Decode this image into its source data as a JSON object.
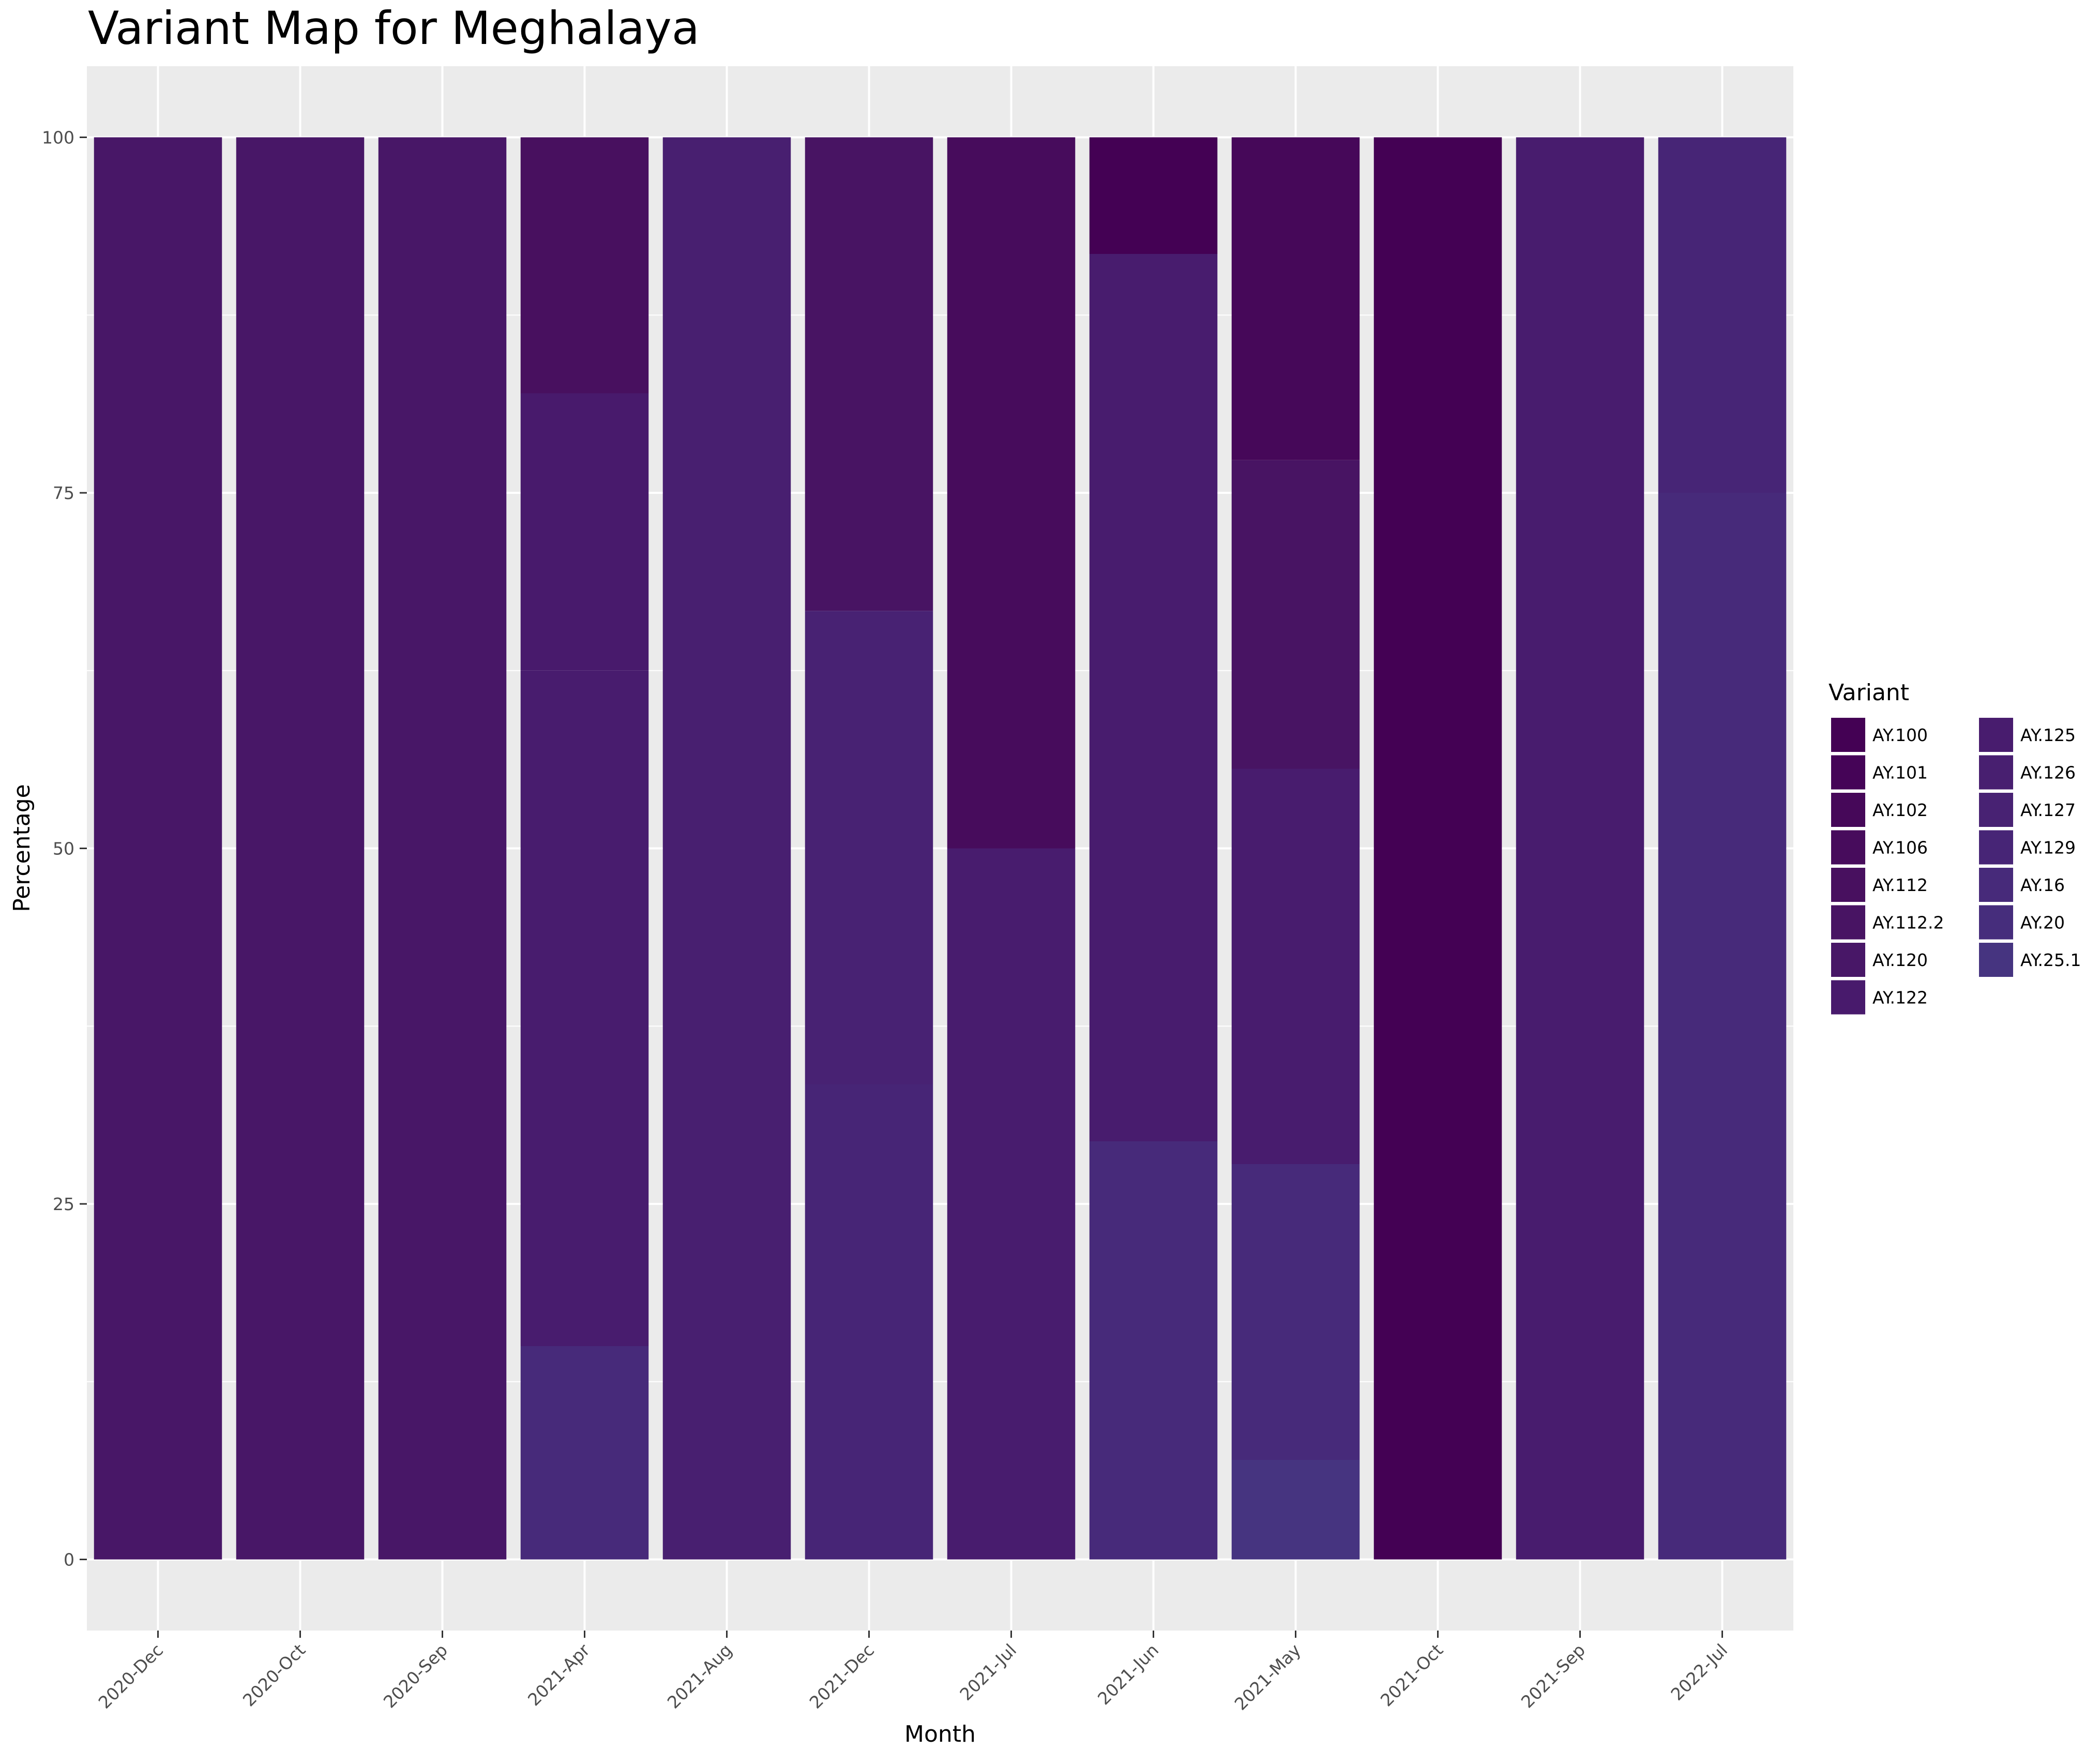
{
  "chart_data": {
    "type": "bar",
    "stacked": true,
    "title": "Variant Map for Meghalaya",
    "xlabel": "Month",
    "ylabel": "Percentage",
    "ylim": [
      -5,
      105
    ],
    "yticks": [
      0,
      25,
      50,
      75,
      100
    ],
    "grid": true,
    "legend": {
      "title": "Variant",
      "position": "right",
      "columns": 2
    },
    "categories": [
      "2020-Dec",
      "2020-Oct",
      "2020-Sep",
      "2021-Apr",
      "2021-Aug",
      "2021-Dec",
      "2021-Jul",
      "2021-Jun",
      "2021-May",
      "2021-Oct",
      "2021-Sep",
      "2022-Jul"
    ],
    "series_colors": {
      "AY.100": "#440154",
      "AY.101": "#450457",
      "AY.102": "#460859",
      "AY.106": "#470c5c",
      "AY.112": "#48105f",
      "AY.112.2": "#481463",
      "AY.120": "#481767",
      "AY.122": "#481a6c",
      "AY.125": "#481c6e",
      "AY.126": "#481f70",
      "AY.127": "#482273",
      "AY.129": "#472576",
      "AY.16": "#472a7a",
      "AY.20": "#462d7c",
      "AY.25.1": "#463480"
    },
    "series": [
      {
        "name": "AY.100",
        "values": [
          0,
          0,
          0,
          0,
          0,
          0,
          0,
          8.2,
          0,
          100,
          0,
          0
        ]
      },
      {
        "name": "AY.101",
        "values": [
          0,
          0,
          0,
          0,
          0,
          0,
          0,
          0,
          0,
          0,
          0,
          0
        ]
      },
      {
        "name": "AY.102",
        "values": [
          0,
          0,
          0,
          0,
          0,
          0,
          0,
          0,
          22.7,
          0,
          0,
          0
        ]
      },
      {
        "name": "AY.106",
        "values": [
          0,
          0,
          0,
          0,
          0,
          0,
          50,
          0,
          0,
          0,
          0,
          0
        ]
      },
      {
        "name": "AY.112",
        "values": [
          0,
          0,
          0,
          18,
          0,
          0,
          0,
          0,
          0,
          0,
          0,
          0
        ]
      },
      {
        "name": "AY.112.2",
        "values": [
          0,
          0,
          0,
          0,
          0,
          33.3,
          0,
          0,
          21.7,
          0,
          0,
          0
        ]
      },
      {
        "name": "AY.120",
        "values": [
          100,
          100,
          100,
          0,
          0,
          0,
          0,
          0,
          0,
          0,
          0,
          0
        ]
      },
      {
        "name": "AY.122",
        "values": [
          0,
          0,
          0,
          19.5,
          0,
          0,
          0,
          0,
          0,
          0,
          0,
          0
        ]
      },
      {
        "name": "AY.125",
        "values": [
          0,
          0,
          0,
          47.5,
          0,
          0,
          50,
          62.4,
          27.8,
          0,
          100,
          0
        ]
      },
      {
        "name": "AY.126",
        "values": [
          0,
          0,
          0,
          0,
          100,
          0,
          0,
          0,
          0,
          0,
          0,
          0
        ]
      },
      {
        "name": "AY.127",
        "values": [
          0,
          0,
          0,
          0,
          0,
          33.3,
          0,
          0,
          0,
          0,
          0,
          0
        ]
      },
      {
        "name": "AY.129",
        "values": [
          0,
          0,
          0,
          0,
          0,
          33.4,
          0,
          0,
          0,
          0,
          0,
          25
        ]
      },
      {
        "name": "AY.16",
        "values": [
          0,
          0,
          0,
          15,
          0,
          0,
          0,
          29.4,
          20.8,
          0,
          0,
          75
        ]
      },
      {
        "name": "AY.20",
        "values": [
          0,
          0,
          0,
          0,
          0,
          0,
          0,
          0,
          0,
          0,
          0,
          0
        ]
      },
      {
        "name": "AY.25.1",
        "values": [
          0,
          0,
          0,
          0,
          0,
          0,
          0,
          0,
          7,
          0,
          0,
          0
        ]
      }
    ]
  }
}
